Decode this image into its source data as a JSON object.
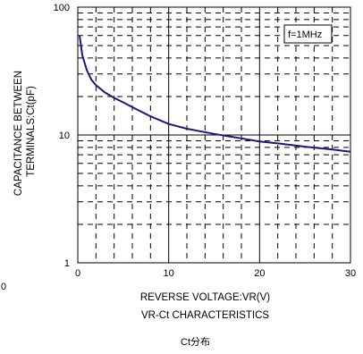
{
  "chart_data": {
    "type": "line",
    "title": "VR-Ct CHARACTERISTICS",
    "caption": "Ct分布",
    "xlabel": "REVERSE VOLTAGE:VR(V)",
    "ylabel_line1": "CAPACITANCE BETWEEN",
    "ylabel_line2": "TERMINALS:Ct(pF)",
    "x_scale": "linear",
    "y_scale": "log",
    "xlim": [
      0,
      30
    ],
    "ylim": [
      1,
      100
    ],
    "x_ticks": [
      0,
      10,
      20,
      30
    ],
    "x_tick_labels": [
      "0",
      "10",
      "20",
      "30"
    ],
    "y_ticks": [
      1,
      10,
      100
    ],
    "y_tick_labels": [
      "1",
      "10",
      "100"
    ],
    "stray_left_label": "0",
    "grid": true,
    "annotation": "f=1MHz",
    "series_color": "#1a1a7a",
    "series": [
      {
        "x": [
          0.2,
          0.5,
          1,
          1.5,
          2,
          3,
          4,
          5,
          6,
          8,
          10,
          12,
          15,
          18,
          20,
          22,
          25,
          28,
          30
        ],
        "values": [
          60,
          42,
          32,
          27,
          24.5,
          21.5,
          19.5,
          18,
          16.5,
          14,
          12.2,
          11.2,
          10.2,
          9.4,
          8.9,
          8.6,
          8.1,
          7.7,
          7.4
        ]
      }
    ]
  }
}
